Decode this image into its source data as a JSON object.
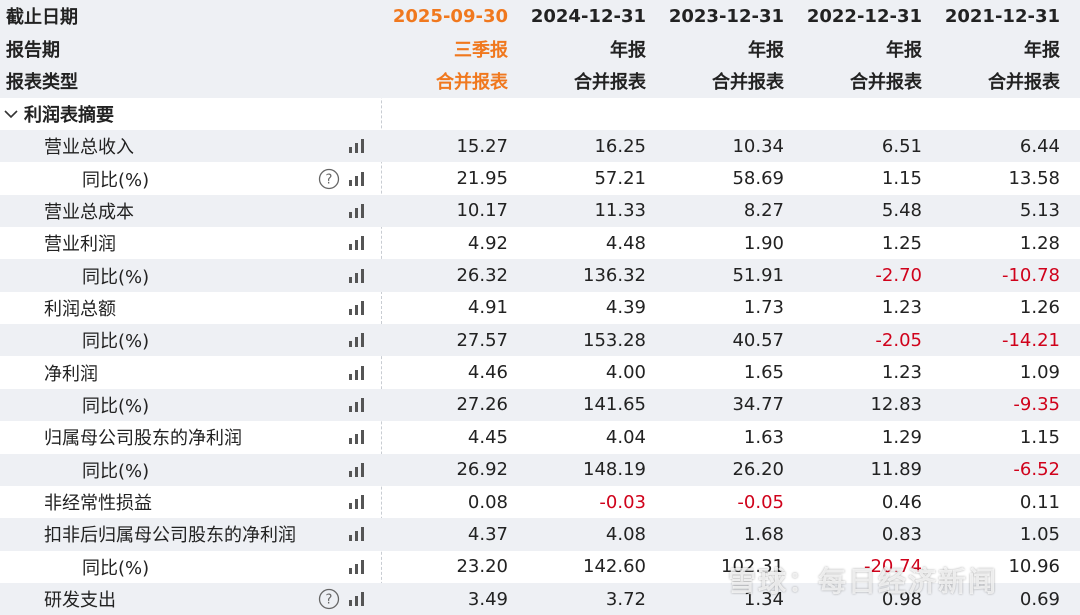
{
  "header": {
    "labels": [
      "截止日期",
      "报告期",
      "报表类型"
    ],
    "columns": [
      {
        "date": "2025-09-30",
        "period": "三季报",
        "type": "合并报表"
      },
      {
        "date": "2024-12-31",
        "period": "年报",
        "type": "合并报表"
      },
      {
        "date": "2023-12-31",
        "period": "年报",
        "type": "合并报表"
      },
      {
        "date": "2022-12-31",
        "period": "年报",
        "type": "合并报表"
      },
      {
        "date": "2021-12-31",
        "period": "年报",
        "type": "合并报表"
      }
    ]
  },
  "section": {
    "title": "利润表摘要"
  },
  "rows": [
    {
      "label": "营业总收入",
      "values": [
        "15.27",
        "16.25",
        "10.34",
        "6.51",
        "6.44"
      ]
    },
    {
      "label": "同比(%)",
      "sub": true,
      "help": true,
      "values": [
        "21.95",
        "57.21",
        "58.69",
        "1.15",
        "13.58"
      ]
    },
    {
      "label": "营业总成本",
      "values": [
        "10.17",
        "11.33",
        "8.27",
        "5.48",
        "5.13"
      ]
    },
    {
      "label": "营业利润",
      "values": [
        "4.92",
        "4.48",
        "1.90",
        "1.25",
        "1.28"
      ]
    },
    {
      "label": "同比(%)",
      "sub": true,
      "values": [
        "26.32",
        "136.32",
        "51.91",
        "-2.70",
        "-10.78"
      ]
    },
    {
      "label": "利润总额",
      "values": [
        "4.91",
        "4.39",
        "1.73",
        "1.23",
        "1.26"
      ]
    },
    {
      "label": "同比(%)",
      "sub": true,
      "values": [
        "27.57",
        "153.28",
        "40.57",
        "-2.05",
        "-14.21"
      ]
    },
    {
      "label": "净利润",
      "values": [
        "4.46",
        "4.00",
        "1.65",
        "1.23",
        "1.09"
      ]
    },
    {
      "label": "同比(%)",
      "sub": true,
      "values": [
        "27.26",
        "141.65",
        "34.77",
        "12.83",
        "-9.35"
      ]
    },
    {
      "label": "归属母公司股东的净利润",
      "values": [
        "4.45",
        "4.04",
        "1.63",
        "1.29",
        "1.15"
      ]
    },
    {
      "label": "同比(%)",
      "sub": true,
      "values": [
        "26.92",
        "148.19",
        "26.20",
        "11.89",
        "-6.52"
      ]
    },
    {
      "label": "非经常性损益",
      "values": [
        "0.08",
        "-0.03",
        "-0.05",
        "0.46",
        "0.11"
      ]
    },
    {
      "label": "扣非后归属母公司股东的净利润",
      "values": [
        "4.37",
        "4.08",
        "1.68",
        "0.83",
        "1.05"
      ]
    },
    {
      "label": "同比(%)",
      "sub": true,
      "values": [
        "23.20",
        "142.60",
        "102.31",
        "-20.74",
        "10.96"
      ]
    },
    {
      "label": "研发支出",
      "help": true,
      "values": [
        "3.49",
        "3.72",
        "1.34",
        "0.98",
        "0.69"
      ]
    }
  ],
  "watermark": "雪球：每日经济新闻"
}
